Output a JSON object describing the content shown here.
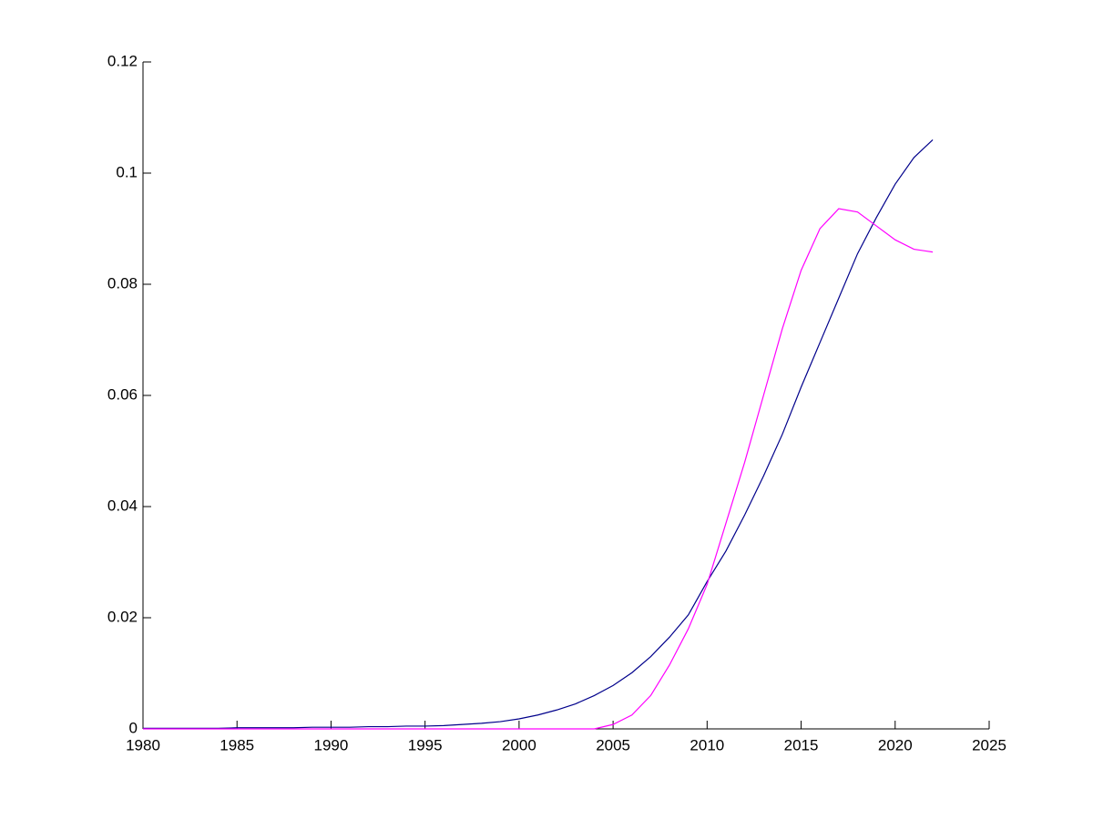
{
  "chart_data": {
    "type": "line",
    "x": [
      1980,
      1981,
      1982,
      1983,
      1984,
      1985,
      1986,
      1987,
      1988,
      1989,
      1990,
      1991,
      1992,
      1993,
      1994,
      1995,
      1996,
      1997,
      1998,
      1999,
      2000,
      2001,
      2002,
      2003,
      2004,
      2005,
      2006,
      2007,
      2008,
      2009,
      2010,
      2011,
      2012,
      2013,
      2014,
      2015,
      2016,
      2017,
      2018,
      2019,
      2020,
      2021,
      2022
    ],
    "series": [
      {
        "color": "#00008b",
        "values": [
          0.0001,
          0.0001,
          0.0001,
          0.0001,
          0.0001,
          0.0002,
          0.0002,
          0.0002,
          0.0002,
          0.0003,
          0.0003,
          0.0003,
          0.0004,
          0.0004,
          0.0005,
          0.0005,
          0.0006,
          0.0008,
          0.001,
          0.0013,
          0.0018,
          0.0025,
          0.0034,
          0.0045,
          0.006,
          0.0078,
          0.0101,
          0.013,
          0.0165,
          0.0205,
          0.0265,
          0.032,
          0.0385,
          0.0455,
          0.053,
          0.0615,
          0.0695,
          0.0775,
          0.0855,
          0.092,
          0.098,
          0.1028,
          0.106
        ]
      },
      {
        "color": "#ff00ff",
        "values": [
          0,
          0,
          0,
          0,
          0,
          0,
          0,
          0,
          0,
          0,
          0,
          0,
          0,
          0,
          0,
          0,
          0,
          0,
          0,
          0,
          0,
          0,
          0,
          0,
          0,
          0.0008,
          0.0025,
          0.006,
          0.0115,
          0.018,
          0.026,
          0.037,
          0.048,
          0.06,
          0.072,
          0.0825,
          0.09,
          0.0936,
          0.093,
          0.0905,
          0.088,
          0.0863,
          0.0858
        ]
      }
    ],
    "xlim": [
      1980,
      2025
    ],
    "xticks": [
      1980,
      1985,
      1990,
      1995,
      2000,
      2005,
      2010,
      2015,
      2020,
      2025
    ],
    "ylim": [
      0,
      0.12
    ],
    "yticks": [
      0,
      0.02,
      0.04,
      0.06,
      0.08,
      0.1,
      0.12
    ]
  }
}
